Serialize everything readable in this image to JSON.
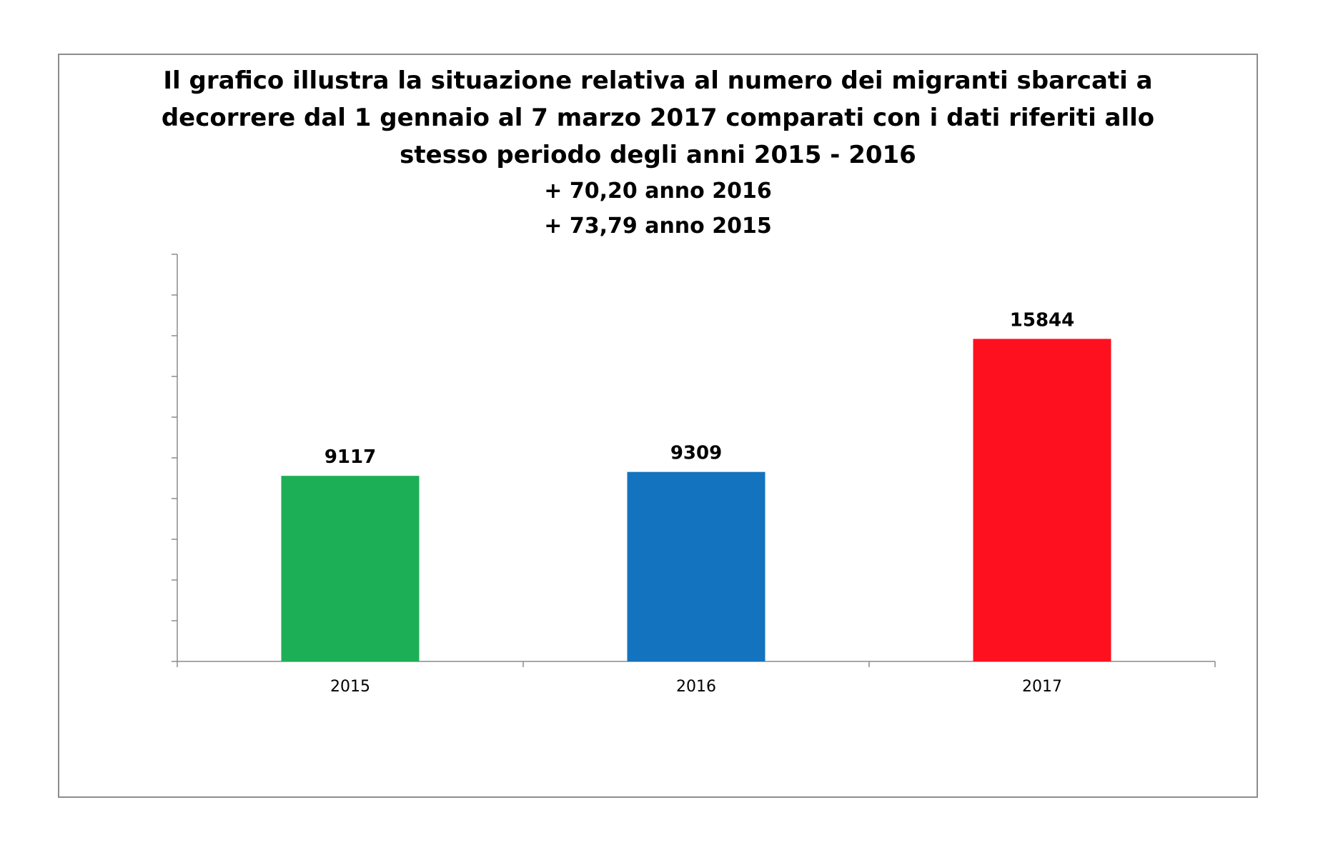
{
  "chart_data": {
    "type": "bar",
    "title_lines": [
      "Il grafico illustra la situazione relativa al numero dei migranti sbarcati a",
      "decorrere dal 1 gennaio al 7 marzo 2017 comparati con i dati riferiti allo",
      "stesso periodo degli anni 2015 - 2016"
    ],
    "subtitle_lines": [
      "+ 70,20 anno 2016",
      "+ 73,79 anno 2015"
    ],
    "categories": [
      "2015",
      "2016",
      "2017"
    ],
    "values": [
      9117,
      9309,
      15844
    ],
    "data_labels": [
      "9117",
      "9309",
      "15844"
    ],
    "colors": [
      "#1daf55",
      "#1373bf",
      "#fe101f"
    ],
    "xlabel": "",
    "ylabel": "",
    "ylim": [
      0,
      20000
    ],
    "y_tick_count": 10,
    "y_tick_labels_visible": false,
    "grid": false,
    "legend": "none"
  }
}
